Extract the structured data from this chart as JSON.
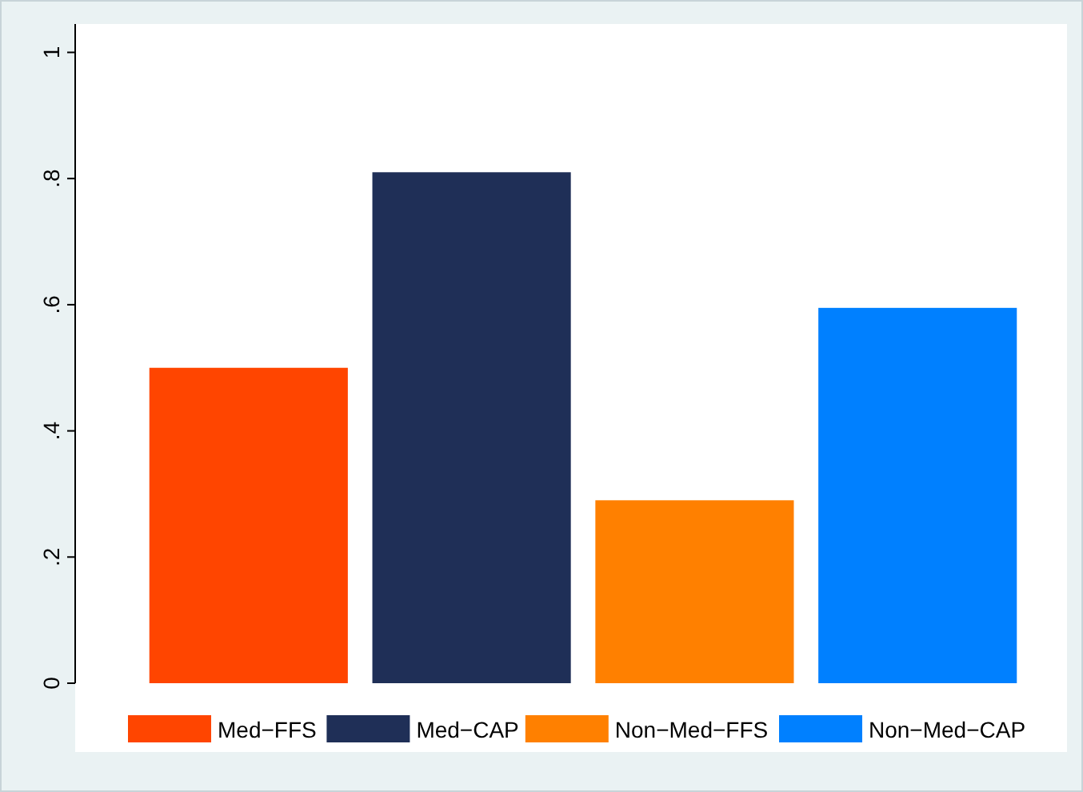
{
  "chart_data": {
    "type": "bar",
    "categories": [
      null
    ],
    "series": [
      {
        "name": "Med−FFS",
        "color": "#ff4500",
        "values": [
          0.5
        ]
      },
      {
        "name": "Med−CAP",
        "color": "#1f2f57",
        "values": [
          0.81
        ]
      },
      {
        "name": "Non−Med−FFS",
        "color": "#ff8000",
        "values": [
          0.29
        ]
      },
      {
        "name": "Non−Med−CAP",
        "color": "#0080ff",
        "values": [
          0.595
        ]
      }
    ],
    "ylim": [
      0,
      1.045
    ],
    "yticks": [
      0,
      {
        "value": 0.2,
        "label": ".2"
      },
      {
        "value": 0.4,
        "label": ".4"
      },
      {
        "value": 0.6,
        "label": ".6"
      },
      {
        "value": 0.8,
        "label": ".8"
      },
      1
    ],
    "grid": false,
    "legend": "bottom"
  }
}
